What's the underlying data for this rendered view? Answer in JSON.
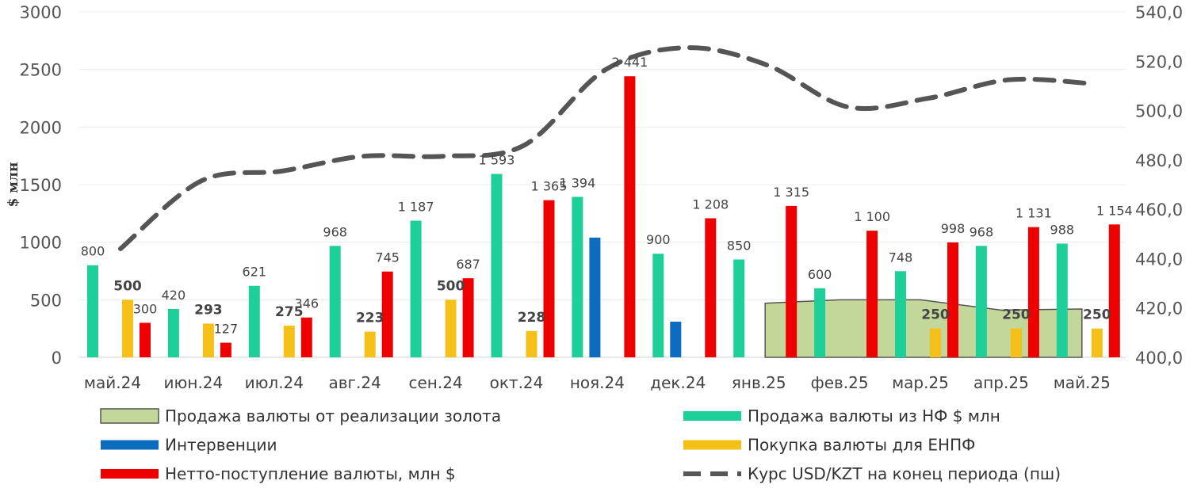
{
  "chart_data": {
    "type": "bar",
    "title": "",
    "ylabel": "$ млн",
    "ylim": [
      0,
      3000
    ],
    "yticks": [
      0,
      500,
      1000,
      1500,
      2000,
      2500,
      3000
    ],
    "y2lim": [
      400,
      540
    ],
    "y2ticks": [
      "400,0",
      "420,0",
      "440,0",
      "460,0",
      "480,0",
      "500,0",
      "520,0",
      "540,0"
    ],
    "grid": true,
    "legend_placement": "bottom",
    "categories": [
      "май.24",
      "июн.24",
      "июл.24",
      "авг.24",
      "сен.24",
      "окт.24",
      "ноя.24",
      "дек.24",
      "янв.25",
      "фев.25",
      "мар.25",
      "апр.25",
      "май.25"
    ],
    "series": [
      {
        "name": "Продажа валюты от реализации золота",
        "kind": "area",
        "color": "#c4d79b",
        "values": [
          null,
          null,
          null,
          null,
          null,
          null,
          null,
          null,
          470,
          500,
          500,
          410,
          420
        ]
      },
      {
        "name": "Продажа валюты из НФ $ млн",
        "kind": "bar",
        "color": "#1fcf9a",
        "values": [
          800,
          420,
          621,
          968,
          1187,
          1593,
          1394,
          900,
          850,
          600,
          748,
          968,
          988
        ]
      },
      {
        "name": "Интервенции",
        "kind": "bar",
        "color": "#0b6cc0",
        "values": [
          null,
          null,
          null,
          null,
          null,
          null,
          1040,
          310,
          null,
          null,
          null,
          null,
          null
        ]
      },
      {
        "name": "Покупка валюты для ЕНПФ",
        "kind": "bar",
        "color": "#f5c118",
        "values": [
          500,
          293,
          275,
          223,
          500,
          228,
          null,
          null,
          null,
          null,
          250,
          250,
          250
        ]
      },
      {
        "name": "Нетто-поступление валюты, млн $",
        "kind": "bar",
        "color": "#ee0000",
        "values": [
          300,
          127,
          346,
          745,
          687,
          1365,
          2441,
          1208,
          1315,
          1100,
          998,
          1131,
          1154
        ]
      },
      {
        "name": "Курс USD/KZT на конец периода (пш)",
        "kind": "line",
        "axis": "secondary",
        "color": "#555555",
        "values": [
          444,
          471.5,
          475.5,
          481.5,
          481.5,
          486,
          516.5,
          525.5,
          518.5,
          501.5,
          505,
          512.5,
          511
        ]
      }
    ]
  }
}
